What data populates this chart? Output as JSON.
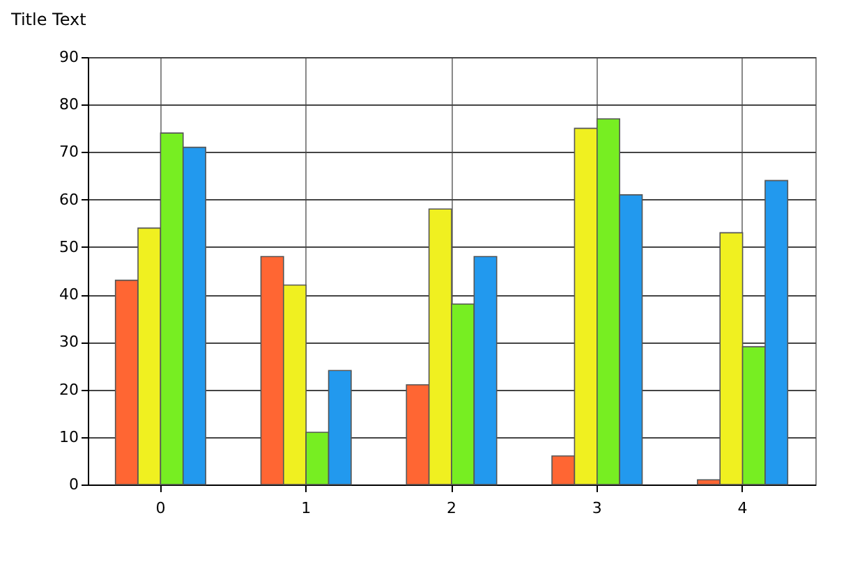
{
  "chart_data": {
    "type": "bar",
    "title": "Title Text",
    "categories": [
      "0",
      "1",
      "2",
      "3",
      "4"
    ],
    "series": [
      {
        "color": "#ff6633",
        "values": [
          43,
          48,
          21,
          6,
          1
        ]
      },
      {
        "color": "#f0f020",
        "values": [
          54,
          42,
          58,
          75,
          53
        ]
      },
      {
        "color": "#77ee22",
        "values": [
          74,
          11,
          38,
          77,
          29
        ]
      },
      {
        "color": "#2299ee",
        "values": [
          71,
          24,
          48,
          61,
          64
        ]
      }
    ],
    "ylim": [
      0,
      90
    ],
    "yticks": [
      0,
      10,
      20,
      30,
      40,
      50,
      60,
      70,
      80,
      90
    ],
    "grid": true,
    "legend": false
  }
}
